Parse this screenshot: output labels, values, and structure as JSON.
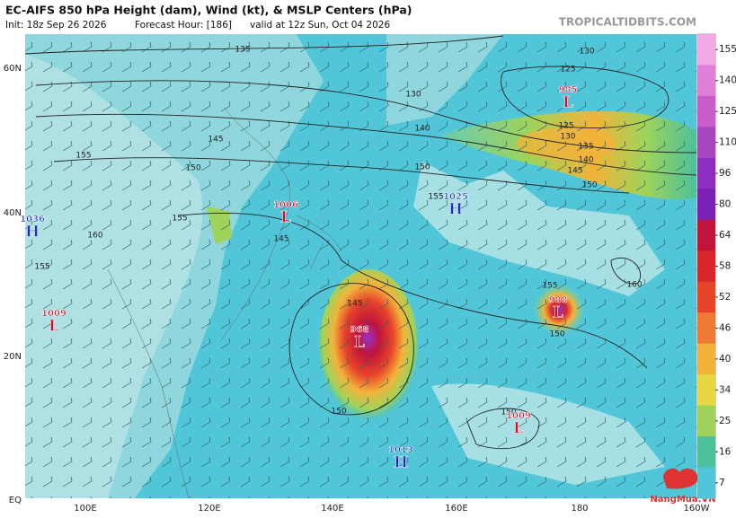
{
  "header": {
    "title": "EC-AIFS 850 hPa Height (dam), Wind (kt), & MSLP Centers (hPa)",
    "init": "Init: 18z Sep 26 2026",
    "forecast_hour": "Forecast Hour: [186]",
    "valid": "valid at 12z Sun, Oct 04 2026",
    "source": "TROPICALTIDBITS.COM"
  },
  "map": {
    "lat_labels": [
      "60N",
      "40N",
      "20N",
      "EQ"
    ],
    "lon_labels": [
      "100E",
      "120E",
      "140E",
      "160E",
      "180",
      "160W"
    ],
    "centers": [
      {
        "value": "985",
        "symbol": "L"
      },
      {
        "value": "1006",
        "symbol": "L"
      },
      {
        "value": "1036",
        "symbol": "H"
      },
      {
        "value": "1025",
        "symbol": "H"
      },
      {
        "value": "1009",
        "symbol": "L"
      },
      {
        "value": "968",
        "symbol": "L"
      },
      {
        "value": "988",
        "symbol": "L"
      },
      {
        "value": "1009",
        "symbol": "L"
      },
      {
        "value": "1013",
        "symbol": "H"
      }
    ],
    "contour_labels": [
      "135",
      "130",
      "125",
      "130",
      "140",
      "145",
      "150",
      "155",
      "155",
      "160",
      "145",
      "155",
      "150",
      "150",
      "145",
      "140",
      "135",
      "130",
      "125",
      "160",
      "155",
      "150",
      "145",
      "150",
      "150",
      "155"
    ]
  },
  "colorbar": {
    "ticks": [
      155,
      140,
      125,
      110,
      96,
      80,
      64,
      58,
      52,
      46,
      40,
      34,
      25,
      16,
      7
    ],
    "colors": [
      "#f2a9e6",
      "#e07fd6",
      "#c95cc8",
      "#a846c2",
      "#8c2fbe",
      "#7a20b5",
      "#c0143a",
      "#d9262a",
      "#e6452a",
      "#ef7a33",
      "#f3b33a",
      "#e7d843",
      "#9fd35a",
      "#4cc19a",
      "#52c6d9"
    ]
  },
  "watermark": "NangMua.VN"
}
